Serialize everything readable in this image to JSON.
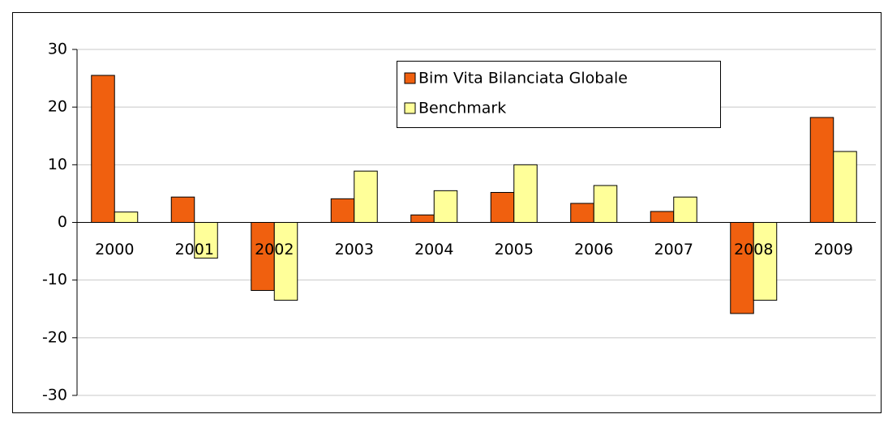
{
  "chart_data": {
    "type": "bar",
    "categories": [
      "2000",
      "2001",
      "2002",
      "2003",
      "2004",
      "2005",
      "2006",
      "2007",
      "2008",
      "2009"
    ],
    "series": [
      {
        "name": "Bim Vita Bilanciata Globale",
        "color": "#f0600f",
        "values": [
          25.5,
          4.4,
          -11.8,
          4.1,
          1.3,
          5.2,
          3.3,
          1.9,
          -15.8,
          18.2
        ]
      },
      {
        "name": "Benchmark",
        "color": "#ffff99",
        "values": [
          1.8,
          -6.2,
          -13.5,
          8.9,
          5.5,
          10.0,
          6.4,
          4.4,
          -13.5,
          12.3
        ]
      }
    ],
    "ylim": [
      -30,
      30
    ],
    "yticks": [
      -30,
      -20,
      -10,
      0,
      10,
      20,
      30
    ],
    "grid": true,
    "legend": "top"
  }
}
